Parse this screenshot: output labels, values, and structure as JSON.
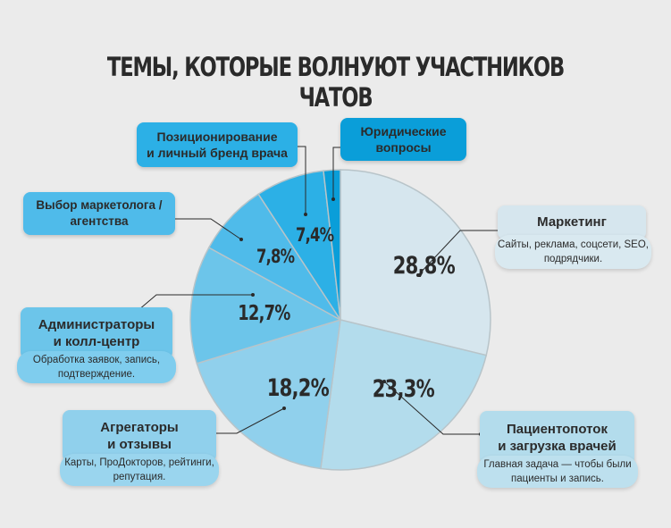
{
  "title": "ТЕМЫ, КОТОРЫЕ ВОЛНУЮТ УЧАСТНИКОВ ЧАТОВ",
  "labels": {
    "marketing": {
      "title": "Маркетинг",
      "desc": "Сайты, реклама, соцсети, SEO, подрядчики.",
      "pct": "28,8%"
    },
    "patients": {
      "title_1": "Пациентопоток",
      "title_2": "и загрузка врачей",
      "desc": "Главная задача — чтобы были пациенты и запись.",
      "pct": "23,3%"
    },
    "aggregators": {
      "title_1": "Агрегаторы",
      "title_2": "и отзывы",
      "desc": "Карты, ПроДокторов, рейтинги, репутация.",
      "pct": "18,2%"
    },
    "admins": {
      "title_1": "Администраторы",
      "title_2": "и колл-центр",
      "desc": "Обработка заявок, запись, подтверждение.",
      "pct": "12,7%"
    },
    "agency": {
      "title_1": "Выбор маркетолога /",
      "title_2": "агентства",
      "pct": "7,8%"
    },
    "branding": {
      "title_1": "Позиционирование",
      "title_2": "и личный бренд врача",
      "pct": "7,4%"
    },
    "legal": {
      "title_1": "Юридические",
      "title_2": "вопросы"
    }
  },
  "colors": {
    "background": "#ebebeb",
    "marketing": "#d6e6ee",
    "patients": "#b3dcec",
    "aggregators": "#90d0ec",
    "admins": "#6cc5ea",
    "agency": "#4fbbea",
    "branding": "#2cb0e6",
    "legal": "#0a9ed9"
  },
  "chart_data": {
    "type": "pie",
    "title": "ТЕМЫ, КОТОРЫЕ ВОЛНУЮТ УЧАСТНИКОВ ЧАТОВ",
    "categories": [
      "Маркетинг",
      "Пациентопоток и загрузка врачей",
      "Агрегаторы и отзывы",
      "Администраторы и колл-центр",
      "Выбор маркетолога / агентства",
      "Позиционирование и личный бренд врача",
      "Юридические вопросы"
    ],
    "values": [
      28.8,
      23.3,
      18.2,
      12.7,
      7.8,
      7.4,
      1.8
    ],
    "value_labels": [
      "28,8%",
      "23,3%",
      "18,2%",
      "12,7%",
      "7,8%",
      "7,4%",
      ""
    ],
    "start_angle": "12 o'clock, clockwise",
    "legend": "callout boxes with leader lines"
  }
}
